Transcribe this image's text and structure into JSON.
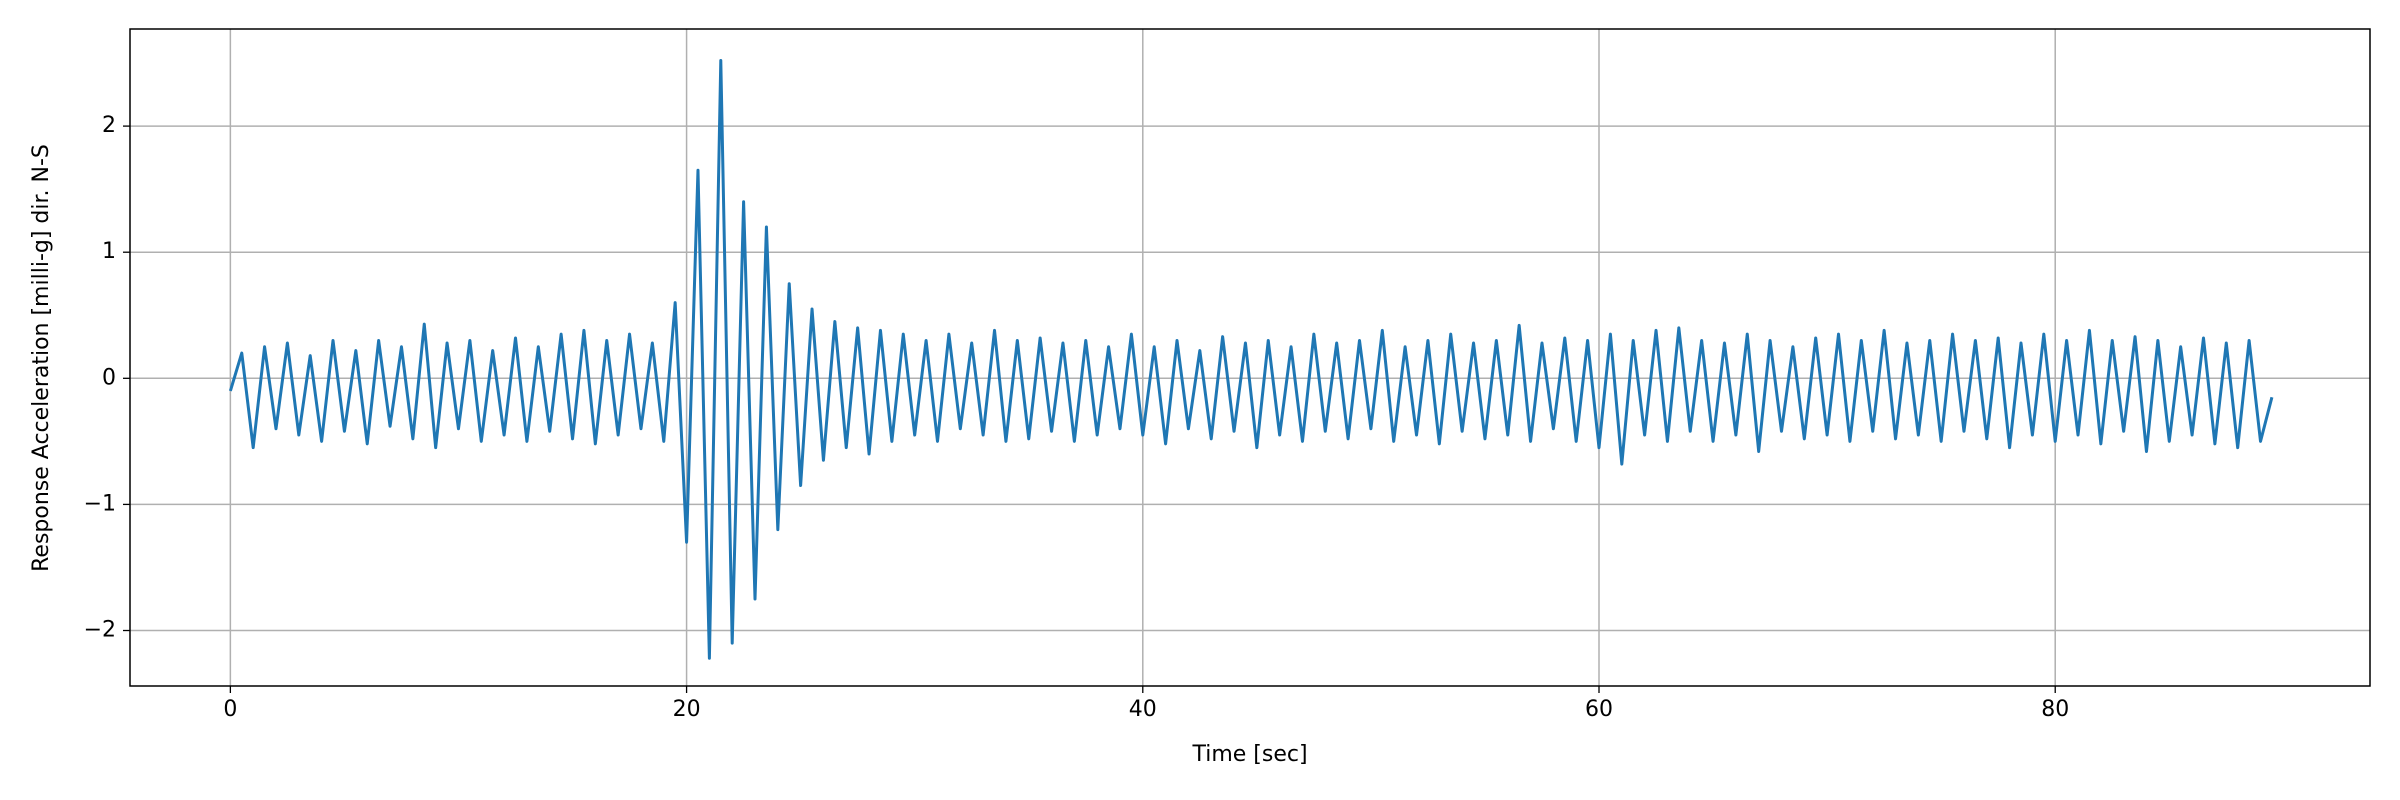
{
  "chart_data": {
    "type": "line",
    "xlabel": "Time [sec]",
    "ylabel": "Response Acceleration [milli-g] dir. N-S",
    "color": "#1f77b4",
    "grid": true,
    "xlim": [
      -4.4,
      93.8
    ],
    "ylim": [
      -2.44,
      2.77
    ],
    "xticks": [
      0,
      20,
      40,
      60,
      80
    ],
    "yticks": [
      {
        "value": -2,
        "label": "−2"
      },
      {
        "value": -1,
        "label": "−1"
      },
      0,
      1,
      2
    ],
    "x": [
      0,
      0.5,
      1,
      1.5,
      2,
      2.5,
      3,
      3.5,
      4,
      4.5,
      5,
      5.5,
      6,
      6.5,
      7,
      7.5,
      8,
      8.5,
      9,
      9.5,
      10,
      10.5,
      11,
      11.5,
      12,
      12.5,
      13,
      13.5,
      14,
      14.5,
      15,
      15.5,
      16,
      16.5,
      17,
      17.5,
      18,
      18.5,
      19,
      19.5,
      20,
      20.5,
      21,
      21.5,
      22,
      22.5,
      23,
      23.5,
      24,
      24.5,
      25,
      25.5,
      26,
      26.5,
      27,
      27.5,
      28,
      28.5,
      29,
      29.5,
      30,
      30.5,
      31,
      31.5,
      32,
      32.5,
      33,
      33.5,
      34,
      34.5,
      35,
      35.5,
      36,
      36.5,
      37,
      37.5,
      38,
      38.5,
      39,
      39.5,
      40,
      40.5,
      41,
      41.5,
      42,
      42.5,
      43,
      43.5,
      44,
      44.5,
      45,
      45.5,
      46,
      46.5,
      47,
      47.5,
      48,
      48.5,
      49,
      49.5,
      50,
      50.5,
      51,
      51.5,
      52,
      52.5,
      53,
      53.5,
      54,
      54.5,
      55,
      55.5,
      56,
      56.5,
      57,
      57.5,
      58,
      58.5,
      59,
      59.5,
      60,
      60.5,
      61,
      61.5,
      62,
      62.5,
      63,
      63.5,
      64,
      64.5,
      65,
      65.5,
      66,
      66.5,
      67,
      67.5,
      68,
      68.5,
      69,
      69.5,
      70,
      70.5,
      71,
      71.5,
      72,
      72.5,
      73,
      73.5,
      74,
      74.5,
      75,
      75.5,
      76,
      76.5,
      77,
      77.5,
      78,
      78.5,
      79,
      79.5,
      80,
      80.5,
      81,
      81.5,
      82,
      82.5,
      83,
      83.5,
      84,
      84.5,
      85,
      85.5,
      86,
      86.5,
      87,
      87.5,
      88,
      88.5,
      89,
      89.5
    ],
    "values": [
      -0.1,
      0.2,
      -0.55,
      0.25,
      -0.4,
      0.28,
      -0.45,
      0.18,
      -0.5,
      0.3,
      -0.42,
      0.22,
      -0.52,
      0.3,
      -0.38,
      0.25,
      -0.48,
      0.43,
      -0.55,
      0.28,
      -0.4,
      0.3,
      -0.5,
      0.22,
      -0.45,
      0.32,
      -0.5,
      0.25,
      -0.42,
      0.35,
      -0.48,
      0.38,
      -0.52,
      0.3,
      -0.45,
      0.35,
      -0.4,
      0.28,
      -0.5,
      0.6,
      -1.3,
      1.65,
      -2.22,
      2.52,
      -2.1,
      1.4,
      -1.75,
      1.2,
      -1.2,
      0.75,
      -0.85,
      0.55,
      -0.65,
      0.45,
      -0.55,
      0.4,
      -0.6,
      0.38,
      -0.5,
      0.35,
      -0.45,
      0.3,
      -0.5,
      0.35,
      -0.4,
      0.28,
      -0.45,
      0.38,
      -0.5,
      0.3,
      -0.48,
      0.32,
      -0.42,
      0.28,
      -0.5,
      0.3,
      -0.45,
      0.25,
      -0.4,
      0.35,
      -0.45,
      0.25,
      -0.52,
      0.3,
      -0.4,
      0.22,
      -0.48,
      0.33,
      -0.42,
      0.28,
      -0.55,
      0.3,
      -0.45,
      0.25,
      -0.5,
      0.35,
      -0.42,
      0.28,
      -0.48,
      0.3,
      -0.4,
      0.38,
      -0.5,
      0.25,
      -0.45,
      0.3,
      -0.52,
      0.35,
      -0.42,
      0.28,
      -0.48,
      0.3,
      -0.45,
      0.42,
      -0.5,
      0.28,
      -0.4,
      0.32,
      -0.5,
      0.3,
      -0.55,
      0.35,
      -0.68,
      0.3,
      -0.45,
      0.38,
      -0.5,
      0.4,
      -0.42,
      0.3,
      -0.5,
      0.28,
      -0.45,
      0.35,
      -0.58,
      0.3,
      -0.42,
      0.25,
      -0.48,
      0.32,
      -0.45,
      0.35,
      -0.5,
      0.3,
      -0.42,
      0.38,
      -0.48,
      0.28,
      -0.45,
      0.3,
      -0.5,
      0.35,
      -0.42,
      0.3,
      -0.48,
      0.32,
      -0.55,
      0.28,
      -0.45,
      0.35,
      -0.5,
      0.3,
      -0.45,
      0.38,
      -0.52,
      0.3,
      -0.42,
      0.33,
      -0.58,
      0.3,
      -0.5,
      0.25,
      -0.45,
      0.32,
      -0.52,
      0.28,
      -0.55,
      0.3,
      -0.5,
      -0.15
    ]
  }
}
